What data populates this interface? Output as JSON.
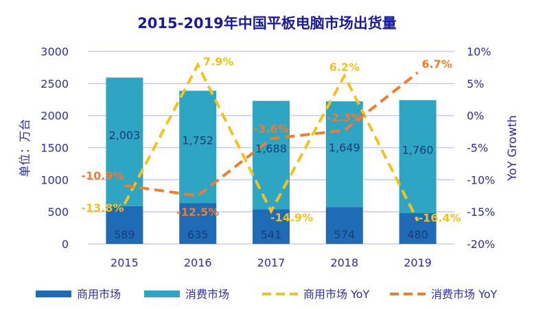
{
  "chart_data": {
    "type": "bar",
    "title": "2015-2019年中国平板电脑市场出货量",
    "ylabel": "单位：万台",
    "y2label": "YoY Growth",
    "categories": [
      "2015",
      "2016",
      "2017",
      "2018",
      "2019"
    ],
    "ylim": [
      0,
      3000
    ],
    "yticks": [
      "0",
      "500",
      "1000",
      "1500",
      "2000",
      "2500",
      "3000"
    ],
    "y2lim": [
      -20,
      10
    ],
    "y2ticks": [
      "-20%",
      "-15%",
      "-10%",
      "-5%",
      "0%",
      "5%",
      "10%"
    ],
    "grid": true,
    "legend_position": "bottom",
    "series": [
      {
        "name": "商用市场",
        "kind": "bar",
        "stacked": true,
        "color": "#1f6bb5",
        "values": [
          589,
          635,
          541,
          574,
          480
        ],
        "labels": [
          "589",
          "635",
          "541",
          "574",
          "480"
        ]
      },
      {
        "name": "消费市场",
        "kind": "bar",
        "stacked": true,
        "color": "#2fa5c4",
        "values": [
          2003,
          1752,
          1688,
          1649,
          1760
        ],
        "labels": [
          "2,003",
          "1,752",
          "1,688",
          "1,649",
          "1,760"
        ]
      },
      {
        "name": "商用市场 YoY",
        "kind": "line",
        "axis": "right",
        "dashed": true,
        "color": "#f5c21b",
        "values": [
          -13.8,
          7.9,
          -14.9,
          6.2,
          -16.4
        ],
        "labels": [
          "-13.8%",
          "7.9%",
          "-14.9%",
          "6.2%",
          "-16.4%"
        ]
      },
      {
        "name": "消费市场 YoY",
        "kind": "line",
        "axis": "right",
        "dashed": true,
        "color": "#f47b2a",
        "values": [
          -10.9,
          -12.5,
          -3.6,
          -2.3,
          6.7
        ],
        "labels": [
          "-10.9%",
          "-12.5%",
          "-3.6%",
          "-2.3%",
          "6.7%"
        ]
      }
    ]
  }
}
